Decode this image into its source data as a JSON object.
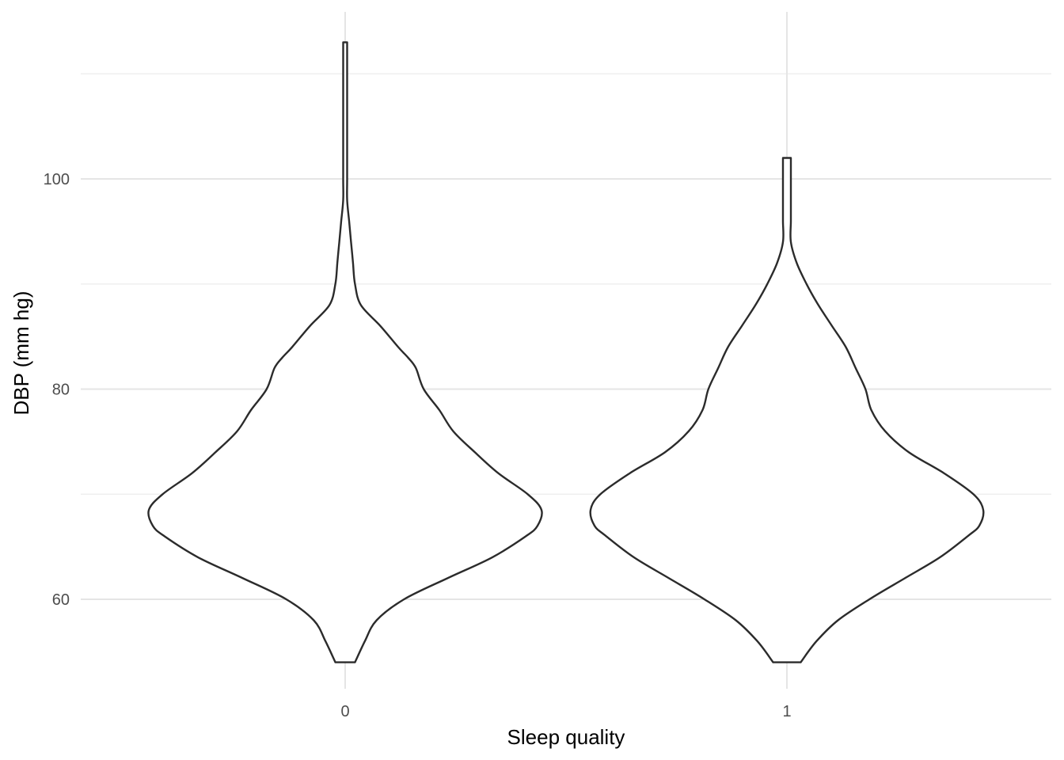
{
  "chart_data": {
    "type": "violin",
    "title": "",
    "xlabel": "Sleep quality",
    "ylabel": "DBP (mm hg)",
    "categories": [
      "0",
      "1"
    ],
    "y_ticks": [
      60,
      80,
      100
    ],
    "ylim": [
      51,
      114
    ],
    "grid": true,
    "colors": {
      "outline": "#2b2b2b",
      "fill": "#ffffff",
      "grid": "#e5e5e5"
    },
    "series": [
      {
        "category": "0",
        "y_min": 54,
        "y_max": 113,
        "density_profile": [
          [
            54,
            0.05
          ],
          [
            56,
            0.1
          ],
          [
            58,
            0.16
          ],
          [
            60,
            0.3
          ],
          [
            62,
            0.52
          ],
          [
            64,
            0.75
          ],
          [
            66,
            0.92
          ],
          [
            67,
            0.98
          ],
          [
            68.5,
            1.0
          ],
          [
            70,
            0.93
          ],
          [
            72,
            0.78
          ],
          [
            74,
            0.66
          ],
          [
            76,
            0.55
          ],
          [
            78,
            0.48
          ],
          [
            80,
            0.4
          ],
          [
            82,
            0.36
          ],
          [
            83,
            0.32
          ],
          [
            84,
            0.27
          ],
          [
            86,
            0.18
          ],
          [
            88,
            0.08
          ],
          [
            90,
            0.05
          ],
          [
            92,
            0.04
          ],
          [
            94,
            0.03
          ],
          [
            96,
            0.02
          ],
          [
            98,
            0.01
          ],
          [
            100,
            0.01
          ],
          [
            104,
            0.01
          ],
          [
            108,
            0.01
          ],
          [
            113,
            0.01
          ]
        ]
      },
      {
        "category": "1",
        "y_min": 54,
        "y_max": 102,
        "density_profile": [
          [
            54,
            0.07
          ],
          [
            56,
            0.15
          ],
          [
            58,
            0.26
          ],
          [
            60,
            0.42
          ],
          [
            62,
            0.6
          ],
          [
            64,
            0.78
          ],
          [
            66,
            0.92
          ],
          [
            67,
            0.98
          ],
          [
            68.5,
            1.0
          ],
          [
            70,
            0.95
          ],
          [
            72,
            0.8
          ],
          [
            74,
            0.62
          ],
          [
            76,
            0.5
          ],
          [
            78,
            0.43
          ],
          [
            80,
            0.4
          ],
          [
            82,
            0.35
          ],
          [
            84,
            0.3
          ],
          [
            86,
            0.23
          ],
          [
            88,
            0.16
          ],
          [
            90,
            0.1
          ],
          [
            92,
            0.05
          ],
          [
            94,
            0.02
          ],
          [
            96,
            0.02
          ],
          [
            98,
            0.02
          ],
          [
            100,
            0.02
          ],
          [
            102,
            0.02
          ]
        ]
      }
    ]
  }
}
